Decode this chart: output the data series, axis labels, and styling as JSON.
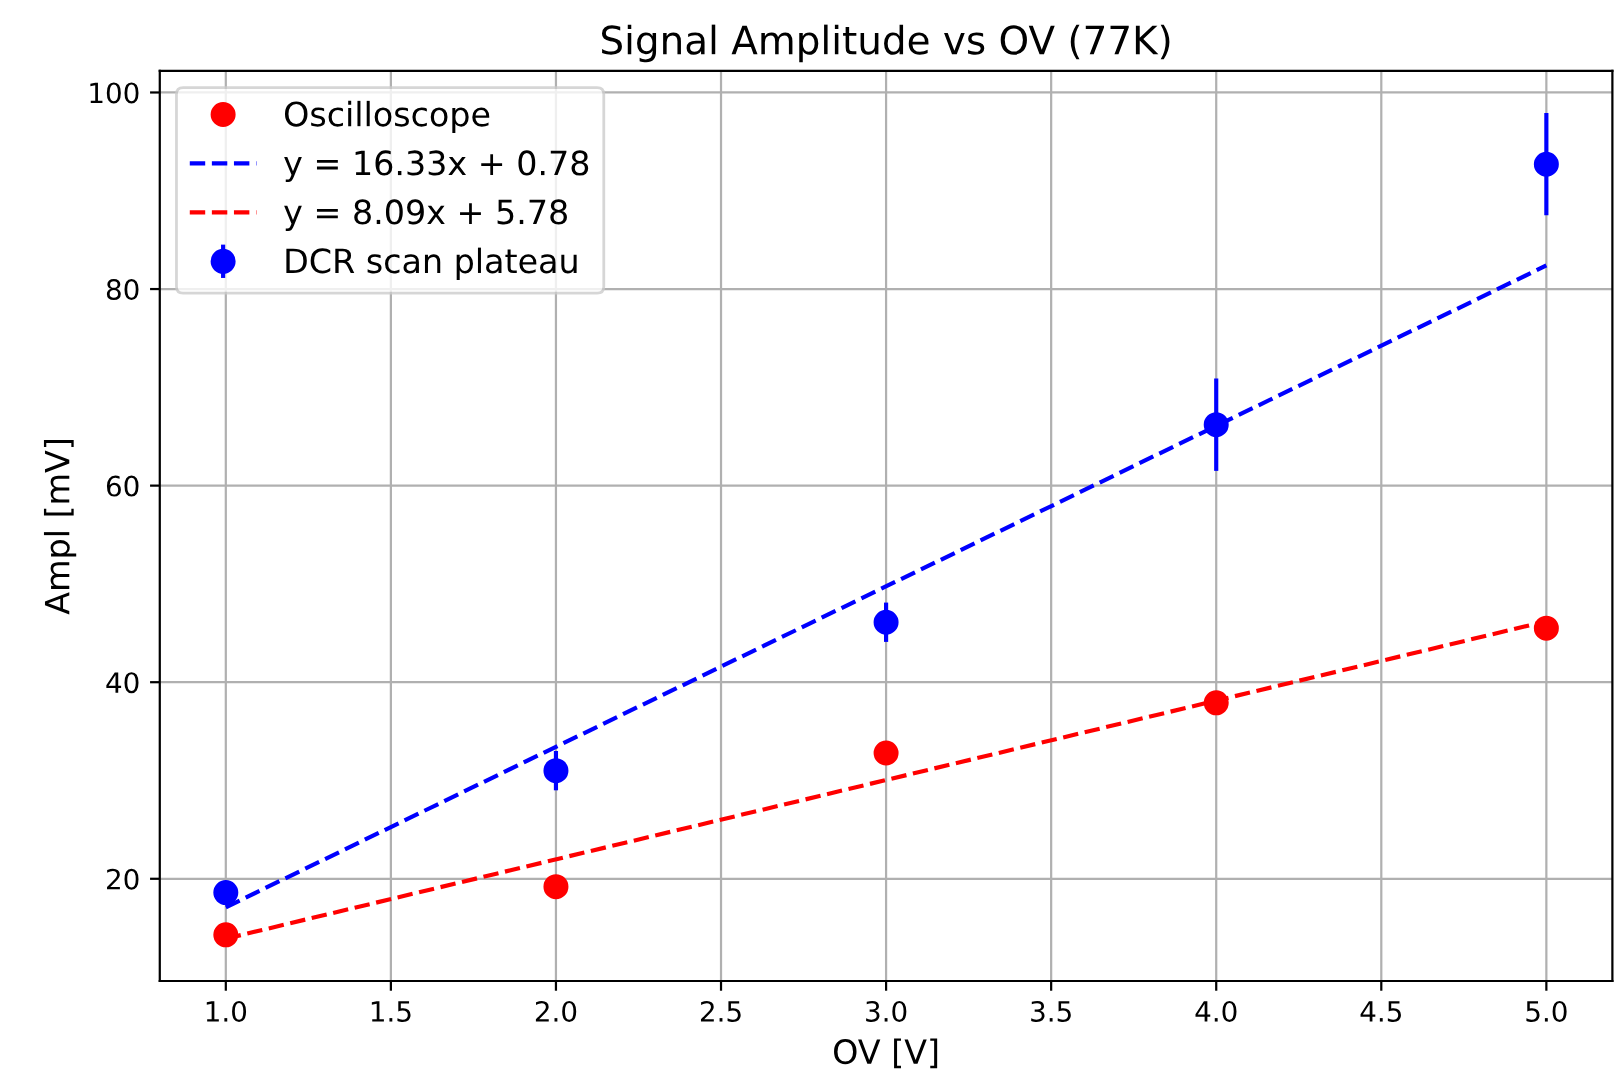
{
  "chart_data": {
    "type": "scatter",
    "title": "Signal Amplitude vs OV (77K)",
    "xlabel": "OV [V]",
    "ylabel": "Ampl [mV]",
    "xlim": [
      0.8,
      5.2
    ],
    "ylim": [
      9.6,
      102.2
    ],
    "xticks": [
      {
        "value": 1,
        "label": "1.0"
      },
      {
        "value": 1.5,
        "label": "1.5"
      },
      {
        "value": 2,
        "label": "2.0"
      },
      {
        "value": 2.5,
        "label": "2.5"
      },
      {
        "value": 3,
        "label": "3.0"
      },
      {
        "value": 3.5,
        "label": "3.5"
      },
      {
        "value": 4,
        "label": "4.0"
      },
      {
        "value": 4.5,
        "label": "4.5"
      },
      {
        "value": 5,
        "label": "5.0"
      }
    ],
    "yticks": [
      20,
      40,
      60,
      80,
      100
    ],
    "grid": true,
    "legend": "top left",
    "series": [
      {
        "name": "Oscilloscope",
        "marker": "circle",
        "color": "#ff0000",
        "x": [
          1,
          2,
          3,
          4,
          5
        ],
        "values": [
          14.3,
          19.2,
          32.8,
          37.9,
          45.5
        ]
      },
      {
        "name": "y = 16.33x + 0.78",
        "type": "line",
        "line_style": "dashed",
        "color": "#0000ff",
        "x": [
          1,
          5
        ],
        "values": [
          17.1,
          82.4
        ]
      },
      {
        "name": "y = 8.09x + 5.78",
        "type": "line",
        "line_style": "dashed",
        "color": "#ff0000",
        "x": [
          1,
          5
        ],
        "values": [
          13.9,
          46.2
        ]
      },
      {
        "name": "DCR scan plateau",
        "marker": "circle",
        "color": "#0000ff",
        "x": [
          1,
          2,
          3,
          4,
          5
        ],
        "values": [
          18.6,
          31.0,
          46.1,
          66.2,
          92.7
        ],
        "errors": [
          1.0,
          2.0,
          2.0,
          4.7,
          5.2
        ]
      }
    ]
  }
}
